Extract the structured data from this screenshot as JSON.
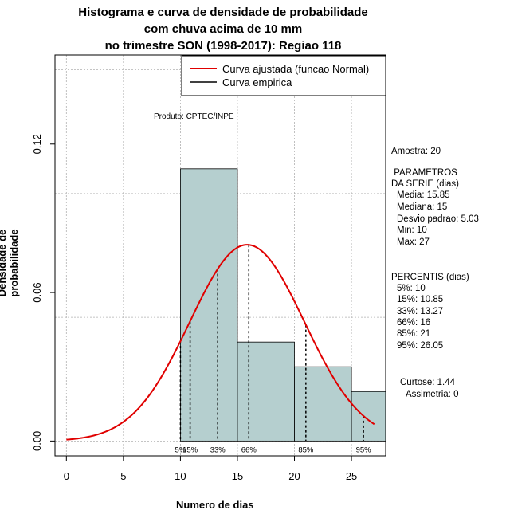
{
  "title_lines": [
    "Histograma e curva de densidade de probabilidade",
    "com chuva acima de 10 mm",
    "no trimestre SON (1998-2017): Regiao 118"
  ],
  "product_label": "Produto: CPTEC/INPE",
  "side_panel": {
    "sample": "Amostra: 20",
    "params_title_1": " PARAMETROS",
    "params_title_2": "DA SERIE (dias)",
    "params": [
      "Media: 15.85",
      "Mediana: 15",
      "Desvio padrao: 5.03",
      "Min: 10",
      "Max: 27"
    ],
    "percentis_title": "PERCENTIS (dias)",
    "percentis": [
      "5%: 10",
      "15%: 10.85",
      "33%: 13.27",
      "66%: 16",
      "85%: 21",
      "95%: 26.05"
    ],
    "curtose": "Curtose: 1.44",
    "assimetria": "Assimetria: 0"
  },
  "colors": {
    "bar_fill": "#b5cfcf",
    "curve": "#e00000",
    "grid": "#b0b0b0"
  },
  "chart_data": {
    "type": "bar",
    "xlabel": "Numero de dias",
    "ylabel": "Densidade de probabilidade",
    "xlim": [
      -1,
      28
    ],
    "ylim": [
      -0.006,
      0.156
    ],
    "xticks": [
      0,
      5,
      10,
      15,
      20,
      25
    ],
    "yticks": [
      0.0,
      0.06,
      0.12
    ],
    "ytick_labels": [
      "0.00",
      "0.06",
      "0.12"
    ],
    "grid_x": [
      0,
      5,
      10,
      15,
      20,
      25
    ],
    "grid_y": [
      0,
      0.05,
      0.1,
      0.15
    ],
    "histogram": [
      {
        "from": 10,
        "to": 15,
        "density": 0.11
      },
      {
        "from": 15,
        "to": 20,
        "density": 0.04
      },
      {
        "from": 20,
        "to": 25,
        "density": 0.03
      },
      {
        "from": 25,
        "to": 28,
        "density": 0.02
      }
    ],
    "fitted_curve": {
      "name": "Curva ajustada (funcao Normal)",
      "distribution": "normal",
      "mean": 15.85,
      "sd": 5.03,
      "x_from": 0,
      "x_to": 27
    },
    "empirical_curve": {
      "name": "Curva empirica"
    },
    "percentiles": [
      {
        "label": "5%",
        "x": 10
      },
      {
        "label": "15%",
        "x": 10.85
      },
      {
        "label": "33%",
        "x": 13.27
      },
      {
        "label": "66%",
        "x": 16
      },
      {
        "label": "85%",
        "x": 21
      },
      {
        "label": "95%",
        "x": 26.05
      }
    ],
    "legend_position": "top-right"
  }
}
